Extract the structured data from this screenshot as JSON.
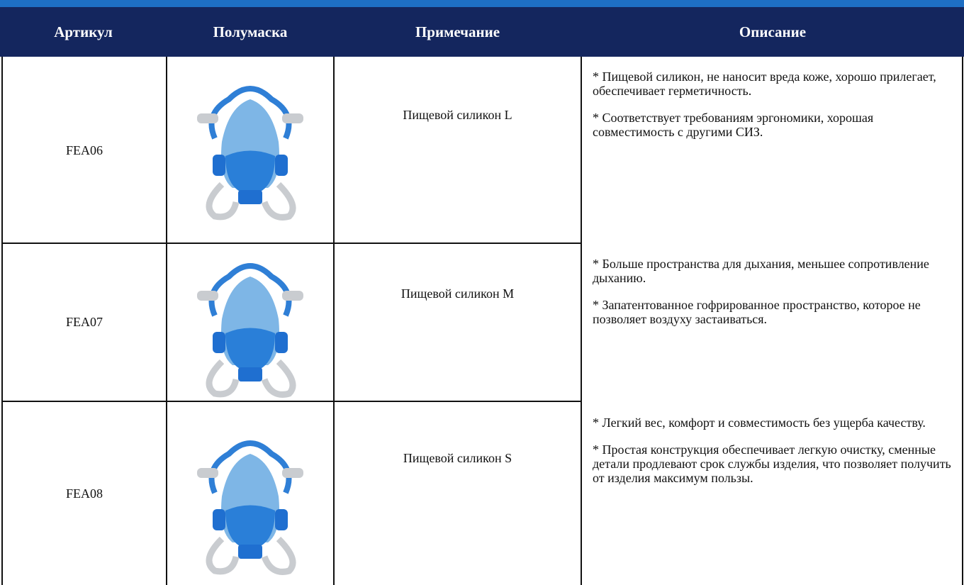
{
  "header": {
    "columns": [
      "Артикул",
      "Полумаска",
      "Примечание",
      "Описание"
    ]
  },
  "rows": [
    {
      "article": "FEA06",
      "note": "Пищевой силикон L",
      "description": [
        "* Пищевой силикон, не наносит вреда коже, хорошо прилегает, обеспечивает герметичность.",
        "* Соответствует требованиям эргономики, хорошая совместимость с другими СИЗ."
      ]
    },
    {
      "article": "FEA07",
      "note": "Пищевой силикон M",
      "description": [
        "* Больше пространства для дыхания, меньшее сопротивление дыханию.",
        "* Запатентованное гофрированное пространство, которое не позволяет воздуху застаиваться."
      ]
    },
    {
      "article": "FEA08",
      "note": "Пищевой силикон S",
      "description": [
        "* Легкий вес, комфорт и совместимость без ущерба качеству.",
        "* Простая конструкция обеспечивает легкую очистку, сменные детали продлевают срок службы изделия, что позволяет получить от изделия максимум пользы."
      ]
    }
  ]
}
